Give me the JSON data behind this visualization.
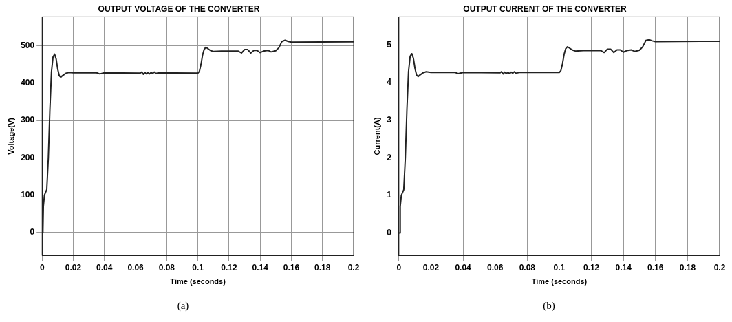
{
  "chart_data": [
    {
      "type": "line",
      "title": "OUTPUT VOLTAGE OF THE CONVERTER",
      "xlabel": "Time (seconds)",
      "ylabel": "Voltage(V)",
      "annotations": [
        "(a)"
      ],
      "grid": true,
      "marker": "none",
      "line_style": "solid",
      "xlim": [
        0,
        0.2
      ],
      "xticks": [
        0,
        0.02,
        0.04,
        0.06,
        0.08,
        0.1,
        0.12,
        0.14,
        0.16,
        0.18,
        0.2
      ],
      "ylim": [
        -62,
        578
      ],
      "yticks": [
        0,
        100,
        200,
        300,
        400,
        500
      ],
      "series": [
        {
          "color": "#222222",
          "x": [
            0,
            0.0005,
            0.0008,
            0.0015,
            0.003,
            0.004,
            0.005,
            0.006,
            0.007,
            0.008,
            0.009,
            0.01,
            0.011,
            0.012,
            0.013,
            0.015,
            0.017,
            0.02,
            0.035,
            0.037,
            0.04,
            0.063,
            0.064,
            0.065,
            0.066,
            0.067,
            0.068,
            0.069,
            0.07,
            0.071,
            0.072,
            0.073,
            0.075,
            0.1,
            0.101,
            0.102,
            0.103,
            0.104,
            0.105,
            0.106,
            0.108,
            0.11,
            0.115,
            0.126,
            0.128,
            0.13,
            0.132,
            0.134,
            0.136,
            0.138,
            0.14,
            0.142,
            0.145,
            0.147,
            0.15,
            0.152,
            0.154,
            0.156,
            0.158,
            0.16,
            0.2
          ],
          "values": [
            0,
            0,
            70,
            100,
            115,
            200,
            330,
            430,
            470,
            478,
            465,
            438,
            420,
            416,
            420,
            426,
            429,
            428,
            428,
            425,
            428,
            427,
            430,
            424,
            429,
            425,
            429,
            425,
            429,
            426,
            430,
            426,
            428,
            427,
            432,
            450,
            475,
            490,
            496,
            494,
            488,
            485,
            486,
            486,
            481,
            490,
            490,
            481,
            488,
            488,
            482,
            486,
            488,
            484,
            487,
            495,
            512,
            515,
            512,
            510,
            511
          ]
        }
      ]
    },
    {
      "type": "line",
      "title": "OUTPUT CURRENT OF THE CONVERTER",
      "xlabel": "Time (seconds)",
      "ylabel": "Current(A)",
      "annotations": [
        "(b)"
      ],
      "grid": true,
      "marker": "none",
      "line_style": "solid",
      "xlim": [
        0,
        0.2
      ],
      "xticks": [
        0,
        0.02,
        0.04,
        0.06,
        0.08,
        0.1,
        0.12,
        0.14,
        0.16,
        0.18,
        0.2
      ],
      "ylim": [
        -0.6,
        5.75
      ],
      "yticks": [
        0,
        1,
        2,
        3,
        4,
        5
      ],
      "series": [
        {
          "color": "#222222",
          "x": [
            0,
            0.0005,
            0.0008,
            0.0015,
            0.003,
            0.004,
            0.005,
            0.006,
            0.007,
            0.008,
            0.009,
            0.01,
            0.011,
            0.012,
            0.013,
            0.015,
            0.017,
            0.02,
            0.035,
            0.037,
            0.04,
            0.063,
            0.064,
            0.065,
            0.066,
            0.067,
            0.068,
            0.069,
            0.07,
            0.071,
            0.072,
            0.073,
            0.075,
            0.1,
            0.101,
            0.102,
            0.103,
            0.104,
            0.105,
            0.106,
            0.108,
            0.11,
            0.115,
            0.126,
            0.128,
            0.13,
            0.132,
            0.134,
            0.136,
            0.138,
            0.14,
            0.142,
            0.145,
            0.147,
            0.15,
            0.152,
            0.154,
            0.156,
            0.158,
            0.16,
            0.2
          ],
          "values": [
            0,
            0,
            0.7,
            1.0,
            1.15,
            2.0,
            3.3,
            4.3,
            4.7,
            4.77,
            4.65,
            4.38,
            4.2,
            4.16,
            4.2,
            4.26,
            4.29,
            4.27,
            4.27,
            4.24,
            4.27,
            4.26,
            4.29,
            4.23,
            4.28,
            4.24,
            4.28,
            4.24,
            4.28,
            4.25,
            4.29,
            4.25,
            4.27,
            4.27,
            4.32,
            4.5,
            4.75,
            4.9,
            4.95,
            4.93,
            4.87,
            4.84,
            4.85,
            4.85,
            4.8,
            4.89,
            4.89,
            4.8,
            4.87,
            4.87,
            4.81,
            4.85,
            4.87,
            4.83,
            4.86,
            4.95,
            5.12,
            5.14,
            5.11,
            5.09,
            5.1
          ]
        }
      ]
    }
  ]
}
